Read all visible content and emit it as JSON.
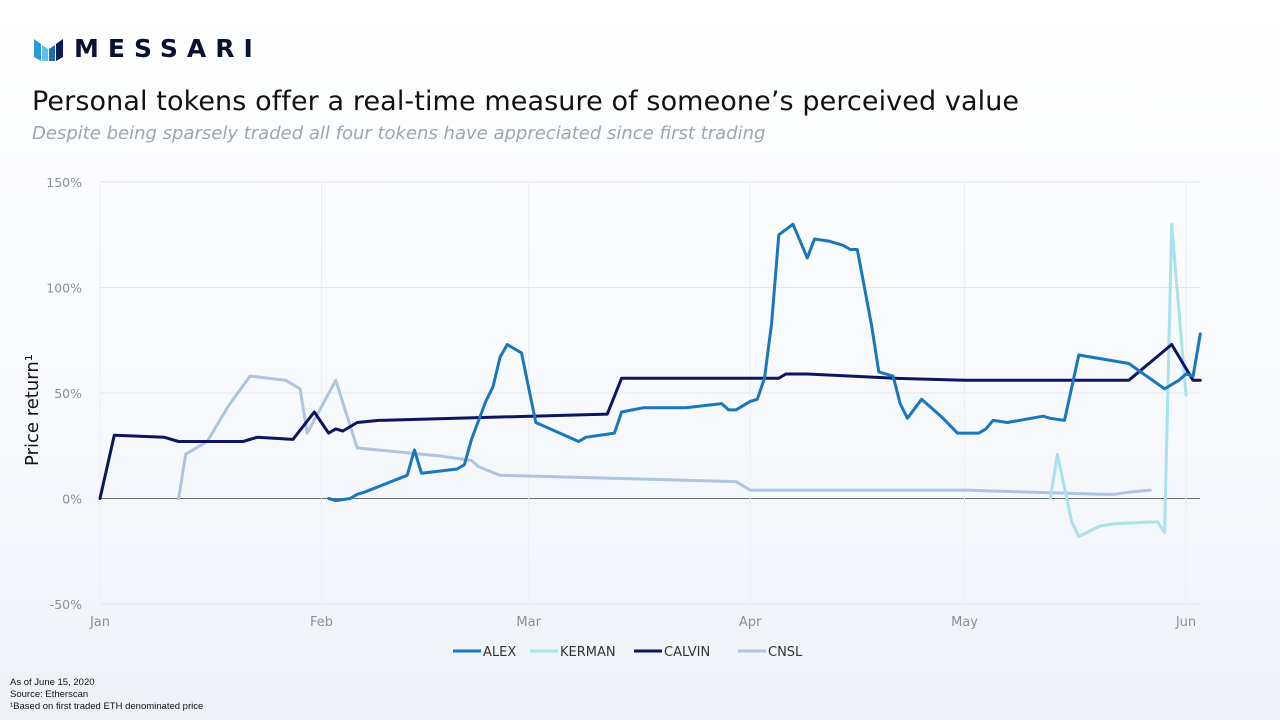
{
  "brand": {
    "name": "MESSARI"
  },
  "header": {
    "title": "Personal tokens offer a real-time measure of someone’s perceived value",
    "subtitle": "Despite being sparsely traded all four tokens have appreciated since first trading"
  },
  "footnotes": {
    "as_of": "As of June 15, 2020",
    "source": "Source: Etherscan",
    "note": "¹Based on first traded ETH denominated price"
  },
  "chart_data": {
    "type": "line",
    "title": "",
    "ylabel": "Price return¹",
    "xlabel": "",
    "ylim": [
      -50,
      150
    ],
    "yticks": [
      150,
      100,
      50,
      0,
      -50
    ],
    "ytick_labels": [
      "150%",
      "100%",
      "50%",
      "0%",
      "-50%"
    ],
    "xlim": [
      "2020-01-01",
      "2020-06-01"
    ],
    "xticks": [
      "2020-01-01",
      "2020-02-01",
      "2020-03-01",
      "2020-04-01",
      "2020-05-01",
      "2020-06-01"
    ],
    "xtick_labels": [
      "Jan",
      "Feb",
      "Mar",
      "Apr",
      "May",
      "Jun"
    ],
    "grid": true,
    "legend_position": "bottom",
    "series": [
      {
        "name": "ALEX",
        "color": "#1877bd",
        "points": [
          [
            "2020-02-02",
            0
          ],
          [
            "2020-02-03",
            -1
          ],
          [
            "2020-02-05",
            0
          ],
          [
            "2020-02-06",
            2
          ],
          [
            "2020-02-07",
            3
          ],
          [
            "2020-02-13",
            11
          ],
          [
            "2020-02-14",
            23
          ],
          [
            "2020-02-15",
            12
          ],
          [
            "2020-02-20",
            14
          ],
          [
            "2020-02-21",
            16
          ],
          [
            "2020-02-22",
            28
          ],
          [
            "2020-02-24",
            46
          ],
          [
            "2020-02-25",
            53
          ],
          [
            "2020-02-26",
            67
          ],
          [
            "2020-02-27",
            73
          ],
          [
            "2020-02-29",
            69
          ],
          [
            "2020-03-02",
            36
          ],
          [
            "2020-03-08",
            27
          ],
          [
            "2020-03-09",
            29
          ],
          [
            "2020-03-13",
            31
          ],
          [
            "2020-03-14",
            41
          ],
          [
            "2020-03-17",
            43
          ],
          [
            "2020-03-23",
            43
          ],
          [
            "2020-03-28",
            45
          ],
          [
            "2020-03-29",
            42
          ],
          [
            "2020-03-30",
            42
          ],
          [
            "2020-04-01",
            46
          ],
          [
            "2020-04-02",
            47
          ],
          [
            "2020-04-03",
            57
          ],
          [
            "2020-04-04",
            83
          ],
          [
            "2020-04-05",
            125
          ],
          [
            "2020-04-07",
            130
          ],
          [
            "2020-04-09",
            114
          ],
          [
            "2020-04-10",
            123
          ],
          [
            "2020-04-12",
            122
          ],
          [
            "2020-04-14",
            120
          ],
          [
            "2020-04-15",
            118
          ],
          [
            "2020-04-16",
            118
          ],
          [
            "2020-04-18",
            82
          ],
          [
            "2020-04-19",
            60
          ],
          [
            "2020-04-21",
            58
          ],
          [
            "2020-04-22",
            45
          ],
          [
            "2020-04-23",
            38
          ],
          [
            "2020-04-25",
            47
          ],
          [
            "2020-04-28",
            38
          ],
          [
            "2020-04-30",
            31
          ],
          [
            "2020-05-03",
            31
          ],
          [
            "2020-05-04",
            33
          ],
          [
            "2020-05-05",
            37
          ],
          [
            "2020-05-07",
            36
          ],
          [
            "2020-05-12",
            39
          ],
          [
            "2020-05-13",
            38
          ],
          [
            "2020-05-15",
            37
          ],
          [
            "2020-05-17",
            68
          ],
          [
            "2020-05-24",
            64
          ],
          [
            "2020-05-29",
            52
          ],
          [
            "2020-05-31",
            56
          ],
          [
            "2020-06-01",
            59
          ],
          [
            "2020-06-02",
            58
          ],
          [
            "2020-06-03",
            78
          ]
        ]
      },
      {
        "name": "KERMAN",
        "color": "#a8e2ea",
        "points": [
          [
            "2020-05-13",
            0
          ],
          [
            "2020-05-14",
            21
          ],
          [
            "2020-05-16",
            -11
          ],
          [
            "2020-05-17",
            -18
          ],
          [
            "2020-05-20",
            -13
          ],
          [
            "2020-05-22",
            -12
          ],
          [
            "2020-05-28",
            -11
          ],
          [
            "2020-05-29",
            -16
          ],
          [
            "2020-05-30",
            130
          ],
          [
            "2020-06-01",
            49
          ]
        ]
      },
      {
        "name": "CALVIN",
        "color": "#0d1560",
        "points": [
          [
            "2020-01-01",
            0
          ],
          [
            "2020-01-03",
            30
          ],
          [
            "2020-01-10",
            29
          ],
          [
            "2020-01-12",
            27
          ],
          [
            "2020-01-19",
            27
          ],
          [
            "2020-01-21",
            27
          ],
          [
            "2020-01-23",
            29
          ],
          [
            "2020-01-28",
            28
          ],
          [
            "2020-01-31",
            41
          ],
          [
            "2020-02-02",
            31
          ],
          [
            "2020-02-03",
            33
          ],
          [
            "2020-02-04",
            32
          ],
          [
            "2020-02-06",
            36
          ],
          [
            "2020-02-09",
            37
          ],
          [
            "2020-03-12",
            40
          ],
          [
            "2020-03-14",
            57
          ],
          [
            "2020-04-01",
            57
          ],
          [
            "2020-04-05",
            57
          ],
          [
            "2020-04-06",
            59
          ],
          [
            "2020-04-09",
            59
          ],
          [
            "2020-04-21",
            57
          ],
          [
            "2020-05-01",
            56
          ],
          [
            "2020-05-24",
            56
          ],
          [
            "2020-05-30",
            73
          ],
          [
            "2020-06-02",
            56
          ],
          [
            "2020-06-03",
            56
          ]
        ]
      },
      {
        "name": "CNSL",
        "color": "#b0c3e3",
        "points": [
          [
            "2020-01-12",
            0
          ],
          [
            "2020-01-13",
            21
          ],
          [
            "2020-01-16",
            27
          ],
          [
            "2020-01-19",
            44
          ],
          [
            "2020-01-22",
            58
          ],
          [
            "2020-01-27",
            56
          ],
          [
            "2020-01-29",
            52
          ],
          [
            "2020-01-30",
            31
          ],
          [
            "2020-02-03",
            56
          ],
          [
            "2020-02-06",
            24
          ],
          [
            "2020-02-18",
            20
          ],
          [
            "2020-02-22",
            18
          ],
          [
            "2020-02-23",
            15
          ],
          [
            "2020-02-26",
            11
          ],
          [
            "2020-03-30",
            8
          ],
          [
            "2020-04-01",
            4
          ],
          [
            "2020-05-01",
            4
          ],
          [
            "2020-05-20",
            2
          ],
          [
            "2020-05-22",
            2
          ],
          [
            "2020-05-24",
            3
          ],
          [
            "2020-05-27",
            4
          ]
        ]
      }
    ]
  }
}
